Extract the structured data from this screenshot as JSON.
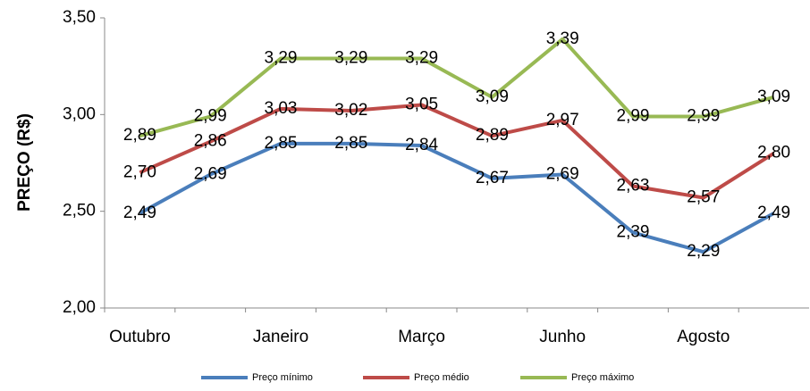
{
  "chart_data": {
    "type": "line",
    "y_label": "PREÇO (R$)",
    "categories": [
      "Outubro",
      null,
      "Janeiro",
      null,
      "Março",
      null,
      "Junho",
      null,
      "Agosto",
      null
    ],
    "series": [
      {
        "name": "Preço mínimo",
        "color": "#4a7ebb",
        "values": [
          2.49,
          2.69,
          2.85,
          2.85,
          2.84,
          2.67,
          2.69,
          2.39,
          2.29,
          2.49
        ],
        "value_labels": [
          "2,49",
          "2,69",
          "2,85",
          "2,85",
          "2,84",
          "2,67",
          "2,69",
          "2,39",
          "2,29",
          "2,49"
        ]
      },
      {
        "name": "Preço médio",
        "color": "#be4b48",
        "values": [
          2.7,
          2.86,
          3.03,
          3.02,
          3.05,
          2.89,
          2.97,
          2.63,
          2.57,
          2.8
        ],
        "value_labels": [
          "2,70",
          "2,86",
          "3,03",
          "3,02",
          "3,05",
          "2,89",
          "2,97",
          "2,63",
          "2,57",
          "2,80"
        ]
      },
      {
        "name": "Preço máximo",
        "color": "#98b954",
        "values": [
          2.89,
          2.99,
          3.29,
          3.29,
          3.29,
          3.09,
          3.39,
          2.99,
          2.99,
          3.09
        ],
        "value_labels": [
          "2,89",
          "2,99",
          "3,29",
          "3,29",
          "3,29",
          "3,09",
          "3,39",
          "2,99",
          "2,99",
          "3,09"
        ]
      }
    ],
    "ylim": [
      2.0,
      3.5
    ],
    "yticks": [
      {
        "value": 2.0,
        "label": "2,00"
      },
      {
        "value": 2.5,
        "label": "2,50"
      },
      {
        "value": 3.0,
        "label": "3,00"
      },
      {
        "value": 3.5,
        "label": "3,50"
      }
    ],
    "legend": "bottom"
  }
}
